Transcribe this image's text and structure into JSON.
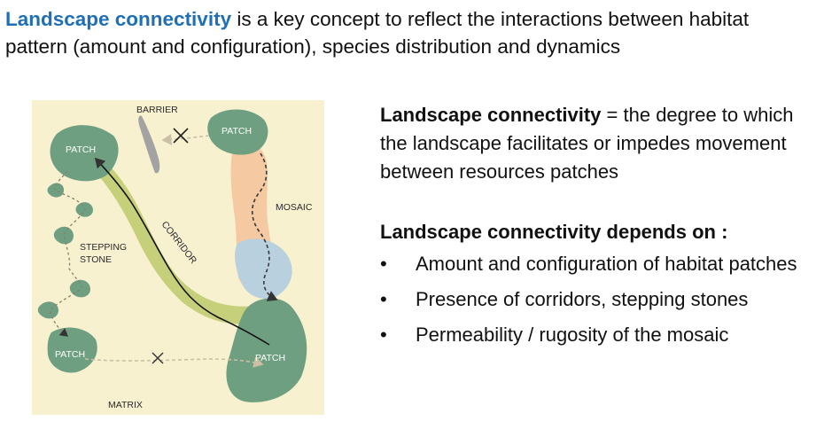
{
  "headline": {
    "highlight": "Landscape connectivity",
    "rest": " is a key concept to reflect the interactions between habitat pattern (amount and configuration), species distribution and dynamics"
  },
  "figure": {
    "labels": {
      "barrier": "BARRIER",
      "patch_top_right": "PATCH",
      "patch_top_left": "PATCH",
      "mosaic": "MOSAIC",
      "stepping_stone": "STEPPING STONE",
      "stepping": "STEPPING",
      "stone": "STONE",
      "corridor": "CORRIDOR",
      "patch_bottom_left": "PATCH",
      "patch_bottom_right": "PATCH",
      "matrix": "MATRIX"
    },
    "colors": {
      "background": "#f7f1d0",
      "patch": "#6f9f81",
      "corridor": "#c6cf7a",
      "mosaic_orange": "#f5c9a1",
      "mosaic_blue": "#b9d0df",
      "barrier": "#a3a3a3"
    }
  },
  "definition": {
    "term": "Landscape connectivity",
    "text": " = the degree to which the landscape facilitates or impedes movement between resources patches"
  },
  "depends": {
    "title": "Landscape connectivity depends on :",
    "items": [
      "Amount and configuration of habitat patches",
      "Presence of corridors, stepping stones",
      "Permeability / rugosity of the mosaic"
    ]
  },
  "bullet": "•"
}
